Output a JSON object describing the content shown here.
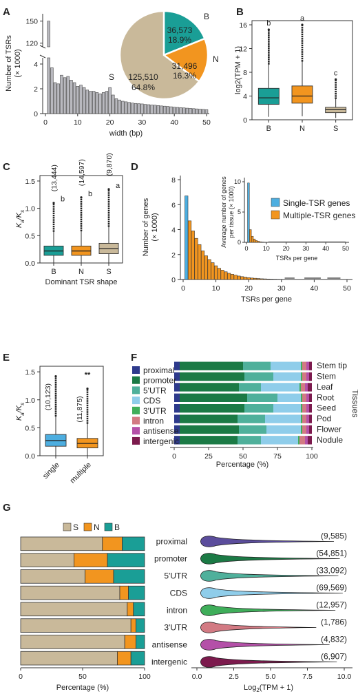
{
  "panels": [
    "A",
    "B",
    "C",
    "D",
    "E",
    "F",
    "G"
  ],
  "colors": {
    "B": "#1a9e96",
    "N": "#f2951f",
    "S": "#c9b99a",
    "single": "#4daee0",
    "bar": "#b9b9bf",
    "sliceS": "#c9b99a"
  },
  "chart_data": [
    {
      "id": "A",
      "type": "bar",
      "title": "",
      "xlabel": "width (bp)",
      "ylabel": "Number of TSRs",
      "ylabel_unit": "(× 1000)",
      "xlim": [
        0,
        50
      ],
      "x_ticks": [
        "0",
        "10",
        "20",
        "30",
        "40",
        "50"
      ],
      "y_ticks_lower": [
        "0",
        "2",
        "4"
      ],
      "y_ticks_upper": [
        "150",
        "120"
      ],
      "axis_break": "broken y-axis between 4.5 and 115",
      "x": [
        1,
        2,
        3,
        4,
        5,
        6,
        7,
        8,
        9,
        10,
        11,
        12,
        13,
        14,
        15,
        16,
        17,
        18,
        19,
        20,
        21,
        22,
        23,
        24,
        25,
        26,
        27,
        28,
        29,
        30,
        31,
        32,
        33,
        34,
        35,
        36,
        37,
        38,
        39,
        40,
        41,
        42,
        43,
        44,
        45,
        46,
        47,
        48,
        49,
        50
      ],
      "values": [
        150,
        3.7,
        2.5,
        2.4,
        3.1,
        2.9,
        3.0,
        2.7,
        2.5,
        2.2,
        2.3,
        2.1,
        1.9,
        1.8,
        1.8,
        1.7,
        1.6,
        1.7,
        1.8,
        2.1,
        1.5,
        1.2,
        1.1,
        1.0,
        0.95,
        0.9,
        0.85,
        0.82,
        0.8,
        0.78,
        0.74,
        0.72,
        0.7,
        0.68,
        0.65,
        0.62,
        0.6,
        0.58,
        0.55,
        0.52,
        0.5,
        0.48,
        0.46,
        0.44,
        0.42,
        0.4,
        0.38,
        0.36,
        0.34,
        0.32
      ],
      "inset": {
        "type": "pie",
        "slices": [
          {
            "name": "B",
            "count": "36,573",
            "percent": "18.9%",
            "value": 18.9
          },
          {
            "name": "N",
            "count": "31,496",
            "percent": "16.3%",
            "value": 16.3
          },
          {
            "name": "S",
            "count": "125,510",
            "percent": "64.8%",
            "value": 64.8
          }
        ]
      }
    },
    {
      "id": "B",
      "type": "box",
      "ylabel": "log2(TPM + 1)",
      "ylim": [
        0,
        16
      ],
      "y_ticks": [
        "0",
        "4",
        "8",
        "12",
        "16"
      ],
      "categories": [
        "B",
        "N",
        "S"
      ],
      "sig_letters": [
        "b",
        "a",
        "c"
      ],
      "boxes": [
        {
          "name": "B",
          "lo": 0.5,
          "q1": 2.6,
          "med": 3.7,
          "q3": 5.3,
          "hi": 9.3,
          "outlier_max": 15.2
        },
        {
          "name": "N",
          "lo": 0.6,
          "q1": 2.8,
          "med": 4.0,
          "q3": 5.7,
          "hi": 9.8,
          "outlier_max": 16.0
        },
        {
          "name": "S",
          "lo": 0.3,
          "q1": 1.2,
          "med": 1.7,
          "q3": 2.1,
          "hi": 3.5,
          "outlier_max": 6.8
        }
      ]
    },
    {
      "id": "C",
      "type": "box",
      "ylabel_main": "K",
      "ylabel_sub1": "a",
      "ylabel_sep": "/K",
      "ylabel_sub2": "s",
      "xlabel": "Dominant TSR shape",
      "ylim": [
        0,
        1.5
      ],
      "y_ticks": [
        "0.0",
        "0.5",
        "1.0",
        "1.5"
      ],
      "categories": [
        "B",
        "N",
        "S"
      ],
      "counts": [
        "(13,444)",
        "(14,597)",
        "(9,870)"
      ],
      "sig_letters": [
        "b",
        "b",
        "a"
      ],
      "boxes": [
        {
          "name": "B",
          "lo": 0.0,
          "q1": 0.14,
          "med": 0.22,
          "q3": 0.31,
          "hi": 0.57,
          "outlier_max": 1.1
        },
        {
          "name": "N",
          "lo": 0.0,
          "q1": 0.14,
          "med": 0.22,
          "q3": 0.31,
          "hi": 0.58,
          "outlier_max": 1.2
        },
        {
          "name": "S",
          "lo": 0.0,
          "q1": 0.17,
          "med": 0.26,
          "q3": 0.36,
          "hi": 0.66,
          "outlier_max": 1.35
        }
      ]
    },
    {
      "id": "D",
      "type": "bar",
      "ylabel": "Number of genes",
      "ylabel_unit": "(× 1000)",
      "xlabel": "TSRs per gene",
      "ylim": [
        0,
        8
      ],
      "xlim": [
        0,
        50
      ],
      "y_ticks": [
        "0",
        "2",
        "4",
        "6",
        "8"
      ],
      "x_ticks": [
        "0",
        "10",
        "20",
        "30",
        "40",
        "50"
      ],
      "series": [
        {
          "name": "Single-TSR genes",
          "x": [
            1
          ],
          "values": [
            6.7
          ]
        },
        {
          "name": "Multiple-TSR genes",
          "x": [
            2,
            3,
            4,
            5,
            6,
            7,
            8,
            9,
            10,
            11,
            12,
            13,
            14,
            15,
            16,
            17,
            18,
            19,
            20,
            21,
            22,
            23,
            24,
            25,
            26,
            27,
            28,
            29,
            30
          ],
          "values": [
            4.7,
            3.9,
            3.3,
            2.8,
            2.3,
            1.9,
            1.6,
            1.35,
            1.1,
            0.9,
            0.75,
            0.62,
            0.5,
            0.42,
            0.35,
            0.28,
            0.23,
            0.19,
            0.15,
            0.12,
            0.1,
            0.08,
            0.06,
            0.05,
            0.04,
            0.03,
            0.025,
            0.02,
            0.015
          ]
        }
      ],
      "inset": {
        "ylabel": "Average number of genes per tissue (× 1000)",
        "xlabel": "TSRs per gene",
        "ylim": [
          0,
          10
        ],
        "xlim": [
          0,
          50
        ],
        "y_ticks": [
          "0",
          "5",
          "10"
        ],
        "x_ticks": [
          "0",
          "10",
          "20",
          "30",
          "40",
          "50"
        ],
        "single": {
          "x": [
            1
          ],
          "values": [
            9.8
          ]
        },
        "multiple": {
          "x": [
            2,
            3,
            4,
            5,
            6,
            7,
            8,
            9,
            10
          ],
          "values": [
            2.1,
            1.0,
            0.55,
            0.3,
            0.18,
            0.1,
            0.06,
            0.04,
            0.02
          ]
        },
        "legend": [
          "Single-TSR genes",
          "Multiple-TSR genes"
        ]
      }
    },
    {
      "id": "E",
      "type": "box",
      "ylabel_main": "K",
      "ylabel_sub1": "a",
      "ylabel_sep": "/K",
      "ylabel_sub2": "s",
      "ylim": [
        0,
        1.5
      ],
      "y_ticks": [
        "0.0",
        "0.5",
        "1.0",
        "1.5"
      ],
      "categories": [
        "single",
        "multiple"
      ],
      "counts": [
        "(10,123)",
        "(11,875)"
      ],
      "significance": "**",
      "boxes": [
        {
          "name": "single",
          "lo": 0.0,
          "q1": 0.17,
          "med": 0.27,
          "q3": 0.38,
          "hi": 0.7,
          "outlier_max": 1.42
        },
        {
          "name": "multiple",
          "lo": 0.0,
          "q1": 0.14,
          "med": 0.22,
          "q3": 0.31,
          "hi": 0.57,
          "outlier_max": 1.2
        }
      ]
    },
    {
      "id": "F",
      "type": "bar",
      "stacked": true,
      "orientation": "horizontal",
      "xlabel": "Percentage (%)",
      "side_label": "Tissues",
      "xlim": [
        0,
        100
      ],
      "x_ticks": [
        "0",
        "25",
        "50",
        "75",
        "100"
      ],
      "categories": [
        "Stem tip",
        "Stem",
        "Leaf",
        "Root",
        "Seed",
        "Pod",
        "Flower",
        "Nodule"
      ],
      "legend_position": "top-left",
      "series": [
        {
          "name": "proximal",
          "color": "#2e3a8c",
          "values": [
            4,
            4,
            4,
            4,
            4,
            4,
            4,
            4
          ]
        },
        {
          "name": "promoter",
          "color": "#1b7a45",
          "values": [
            46,
            47,
            43,
            49,
            47,
            42,
            43,
            42
          ]
        },
        {
          "name": "5'UTR",
          "color": "#4fb09b",
          "values": [
            20,
            21,
            16,
            22,
            21,
            20,
            20,
            17
          ]
        },
        {
          "name": "CDS",
          "color": "#8fcdea",
          "values": [
            22,
            20,
            28,
            17,
            20,
            26,
            25,
            27
          ]
        },
        {
          "name": "3'UTR",
          "color": "#3fae5a",
          "values": [
            1,
            1,
            1,
            1,
            1,
            1,
            1,
            1
          ]
        },
        {
          "name": "intron",
          "color": "#d27a83",
          "values": [
            3,
            3,
            3,
            3,
            3,
            3,
            3,
            4
          ]
        },
        {
          "name": "antisense",
          "color": "#b450a8",
          "values": [
            2,
            2,
            2,
            2,
            2,
            2,
            2,
            2
          ]
        },
        {
          "name": "intergenic",
          "color": "#7c1a4d",
          "values": [
            2,
            2,
            3,
            2,
            2,
            2,
            2,
            3
          ]
        }
      ]
    },
    {
      "id": "G-left",
      "type": "bar",
      "stacked": true,
      "orientation": "horizontal",
      "xlabel": "Percentage (%)",
      "xlim": [
        0,
        100
      ],
      "x_ticks": [
        "0",
        "50",
        "100"
      ],
      "categories": [
        "proximal",
        "promoter",
        "5'UTR",
        "CDS",
        "intron",
        "3'UTR",
        "antisense",
        "intergenic"
      ],
      "legend": [
        "S",
        "N",
        "B"
      ],
      "legend_position": "top",
      "series": [
        {
          "name": "S",
          "color": "#c9b99a",
          "values": [
            66,
            43,
            52,
            80,
            86,
            89,
            84,
            78
          ]
        },
        {
          "name": "N",
          "color": "#f2951f",
          "values": [
            16,
            27,
            23,
            7,
            5,
            4,
            9,
            11
          ]
        },
        {
          "name": "B",
          "color": "#1a9e96",
          "values": [
            18,
            30,
            25,
            13,
            9,
            7,
            7,
            11
          ]
        }
      ]
    },
    {
      "id": "G-right",
      "type": "violin",
      "xlabel_main": "Log",
      "xlabel_sub": "2",
      "xlabel_rest": "(TPM + 1)",
      "xlim": [
        0,
        10
      ],
      "x_ticks": [
        "0.0",
        "2.5",
        "5.0",
        "7.5",
        "10.0"
      ],
      "categories": [
        "proximal",
        "promoter",
        "5'UTR",
        "CDS",
        "intron",
        "3'UTR",
        "antisense",
        "intergenic"
      ],
      "counts": [
        "(9,585)",
        "(54,851)",
        "(33,092)",
        "(69,569)",
        "(12,957)",
        "(1,786)",
        "(4,832)",
        "(6,907)"
      ],
      "colors": [
        "#5b4d9c",
        "#1b7a45",
        "#4fb09b",
        "#8fcdea",
        "#3fae5a",
        "#d27a83",
        "#b450a8",
        "#7c1a4d"
      ],
      "max_values": [
        9.3,
        9.7,
        9.6,
        9.9,
        9.4,
        8.1,
        9.0,
        9.5
      ]
    }
  ]
}
